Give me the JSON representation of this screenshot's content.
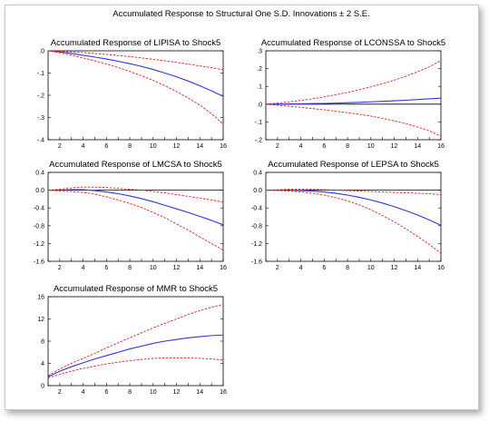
{
  "figure_title": "Accumulated Response to Structural One S.D. Innovations ± 2 S.E.",
  "colors": {
    "response": "#3333dd",
    "band": "#e0201b",
    "axis": "#000000"
  },
  "chart_data": [
    {
      "type": "line",
      "title": "Accumulated Response of LIPISA to Shock5",
      "x": [
        1,
        2,
        3,
        4,
        5,
        6,
        7,
        8,
        9,
        10,
        11,
        12,
        13,
        14,
        15,
        16
      ],
      "xticks": [
        2,
        4,
        6,
        8,
        10,
        12,
        14,
        16
      ],
      "xlim": [
        1,
        16
      ],
      "ylim": [
        -0.4,
        0.0
      ],
      "yticks": [
        0.0,
        -0.1,
        -0.2,
        -0.3,
        -0.4
      ],
      "ytick_labels": [
        ".0",
        "-.1",
        "-.2",
        "-.3",
        "-.4"
      ],
      "zero_line": false,
      "series": [
        {
          "role": "response",
          "values": [
            0.0,
            -0.005,
            -0.012,
            -0.02,
            -0.028,
            -0.037,
            -0.047,
            -0.058,
            -0.07,
            -0.084,
            -0.1,
            -0.117,
            -0.136,
            -0.157,
            -0.18,
            -0.205
          ]
        },
        {
          "role": "upper",
          "values": [
            0.0,
            -0.002,
            -0.005,
            -0.008,
            -0.012,
            -0.016,
            -0.021,
            -0.026,
            -0.032,
            -0.038,
            -0.045,
            -0.052,
            -0.06,
            -0.068,
            -0.076,
            -0.085
          ]
        },
        {
          "role": "lower",
          "values": [
            0.0,
            -0.009,
            -0.02,
            -0.032,
            -0.045,
            -0.059,
            -0.075,
            -0.093,
            -0.112,
            -0.133,
            -0.157,
            -0.183,
            -0.212,
            -0.244,
            -0.283,
            -0.33
          ]
        }
      ]
    },
    {
      "type": "line",
      "title": "Accumulated Response of LCONSSA to Shock5",
      "x": [
        1,
        2,
        3,
        4,
        5,
        6,
        7,
        8,
        9,
        10,
        11,
        12,
        13,
        14,
        15,
        16
      ],
      "xticks": [
        2,
        4,
        6,
        8,
        10,
        12,
        14,
        16
      ],
      "xlim": [
        1,
        16
      ],
      "ylim": [
        -0.2,
        0.3
      ],
      "yticks": [
        0.3,
        0.2,
        0.1,
        0.0,
        -0.1,
        -0.2
      ],
      "ytick_labels": [
        ".3",
        ".2",
        ".1",
        ".0",
        "-.1",
        "-.2"
      ],
      "zero_line": true,
      "series": [
        {
          "role": "response",
          "values": [
            0.0,
            0.0,
            0.001,
            0.002,
            0.003,
            0.004,
            0.006,
            0.008,
            0.01,
            0.013,
            0.016,
            0.019,
            0.022,
            0.026,
            0.03,
            0.034
          ]
        },
        {
          "role": "upper",
          "values": [
            0.0,
            0.006,
            0.013,
            0.021,
            0.03,
            0.041,
            0.053,
            0.066,
            0.081,
            0.097,
            0.115,
            0.135,
            0.157,
            0.182,
            0.21,
            0.245
          ]
        },
        {
          "role": "lower",
          "values": [
            0.0,
            -0.006,
            -0.012,
            -0.018,
            -0.025,
            -0.032,
            -0.04,
            -0.048,
            -0.057,
            -0.067,
            -0.08,
            -0.094,
            -0.11,
            -0.128,
            -0.15,
            -0.18
          ]
        }
      ]
    },
    {
      "type": "line",
      "title": "Accumulated Response of LMCSA to Shock5",
      "x": [
        1,
        2,
        3,
        4,
        5,
        6,
        7,
        8,
        9,
        10,
        11,
        12,
        13,
        14,
        15,
        16
      ],
      "xticks": [
        2,
        4,
        6,
        8,
        10,
        12,
        14,
        16
      ],
      "xlim": [
        1,
        16
      ],
      "ylim": [
        -1.6,
        0.4
      ],
      "yticks": [
        0.4,
        0.0,
        -0.4,
        -0.8,
        -1.2,
        -1.6
      ],
      "ytick_labels": [
        "0.4",
        "0.0",
        "-0.4",
        "-0.8",
        "-1.2",
        "-1.6"
      ],
      "zero_line": true,
      "series": [
        {
          "role": "response",
          "values": [
            0.0,
            0.0,
            0.01,
            0.01,
            -0.01,
            -0.04,
            -0.08,
            -0.13,
            -0.19,
            -0.26,
            -0.34,
            -0.42,
            -0.5,
            -0.59,
            -0.68,
            -0.78
          ]
        },
        {
          "role": "upper",
          "values": [
            0.0,
            0.02,
            0.05,
            0.07,
            0.07,
            0.06,
            0.04,
            0.02,
            0.0,
            -0.03,
            -0.06,
            -0.1,
            -0.14,
            -0.18,
            -0.22,
            -0.27
          ]
        },
        {
          "role": "lower",
          "values": [
            0.0,
            -0.02,
            -0.03,
            -0.05,
            -0.09,
            -0.15,
            -0.22,
            -0.3,
            -0.39,
            -0.5,
            -0.62,
            -0.76,
            -0.9,
            -1.05,
            -1.2,
            -1.35
          ]
        }
      ]
    },
    {
      "type": "line",
      "title": "Accumulated Response of LEPSA to Shock5",
      "x": [
        1,
        2,
        3,
        4,
        5,
        6,
        7,
        8,
        9,
        10,
        11,
        12,
        13,
        14,
        15,
        16
      ],
      "xticks": [
        2,
        4,
        6,
        8,
        10,
        12,
        14,
        16
      ],
      "xlim": [
        1,
        16
      ],
      "ylim": [
        -1.6,
        0.4
      ],
      "yticks": [
        0.4,
        0.0,
        -0.4,
        -0.8,
        -1.2,
        -1.6
      ],
      "ytick_labels": [
        "0.4",
        "0.0",
        "-0.4",
        "-0.8",
        "-1.2",
        "-1.6"
      ],
      "zero_line": true,
      "series": [
        {
          "role": "response",
          "values": [
            0.0,
            0.0,
            0.0,
            -0.01,
            -0.02,
            -0.04,
            -0.07,
            -0.11,
            -0.16,
            -0.22,
            -0.29,
            -0.37,
            -0.46,
            -0.56,
            -0.67,
            -0.79
          ]
        },
        {
          "role": "upper",
          "values": [
            0.0,
            0.01,
            0.02,
            0.02,
            0.02,
            0.01,
            0.0,
            -0.01,
            -0.02,
            -0.03,
            -0.04,
            -0.05,
            -0.06,
            -0.07,
            -0.08,
            -0.1
          ]
        },
        {
          "role": "lower",
          "values": [
            0.0,
            -0.01,
            -0.02,
            -0.04,
            -0.07,
            -0.11,
            -0.17,
            -0.24,
            -0.33,
            -0.44,
            -0.57,
            -0.71,
            -0.87,
            -1.04,
            -1.22,
            -1.42
          ]
        }
      ]
    },
    {
      "type": "line",
      "title": "Accumulated Response of MMR to Shock5",
      "x": [
        1,
        2,
        3,
        4,
        5,
        6,
        7,
        8,
        9,
        10,
        11,
        12,
        13,
        14,
        15,
        16
      ],
      "xticks": [
        2,
        4,
        6,
        8,
        10,
        12,
        14,
        16
      ],
      "xlim": [
        1,
        16
      ],
      "ylim": [
        0,
        16
      ],
      "yticks": [
        16,
        12,
        8,
        4,
        0
      ],
      "ytick_labels": [
        "16",
        "12",
        "8",
        "4",
        "0"
      ],
      "zero_line": false,
      "series": [
        {
          "role": "response",
          "values": [
            1.6,
            2.6,
            3.4,
            4.1,
            4.8,
            5.4,
            6.0,
            6.6,
            7.1,
            7.6,
            8.0,
            8.3,
            8.6,
            8.8,
            9.0,
            9.1
          ]
        },
        {
          "role": "upper",
          "values": [
            1.8,
            3.0,
            4.0,
            4.9,
            5.8,
            6.8,
            7.7,
            8.6,
            9.5,
            10.4,
            11.2,
            12.0,
            12.8,
            13.5,
            14.1,
            14.6
          ]
        },
        {
          "role": "lower",
          "values": [
            1.4,
            2.0,
            2.6,
            3.1,
            3.5,
            3.9,
            4.2,
            4.5,
            4.7,
            4.9,
            5.0,
            5.0,
            5.0,
            4.9,
            4.8,
            4.6
          ]
        }
      ]
    }
  ]
}
